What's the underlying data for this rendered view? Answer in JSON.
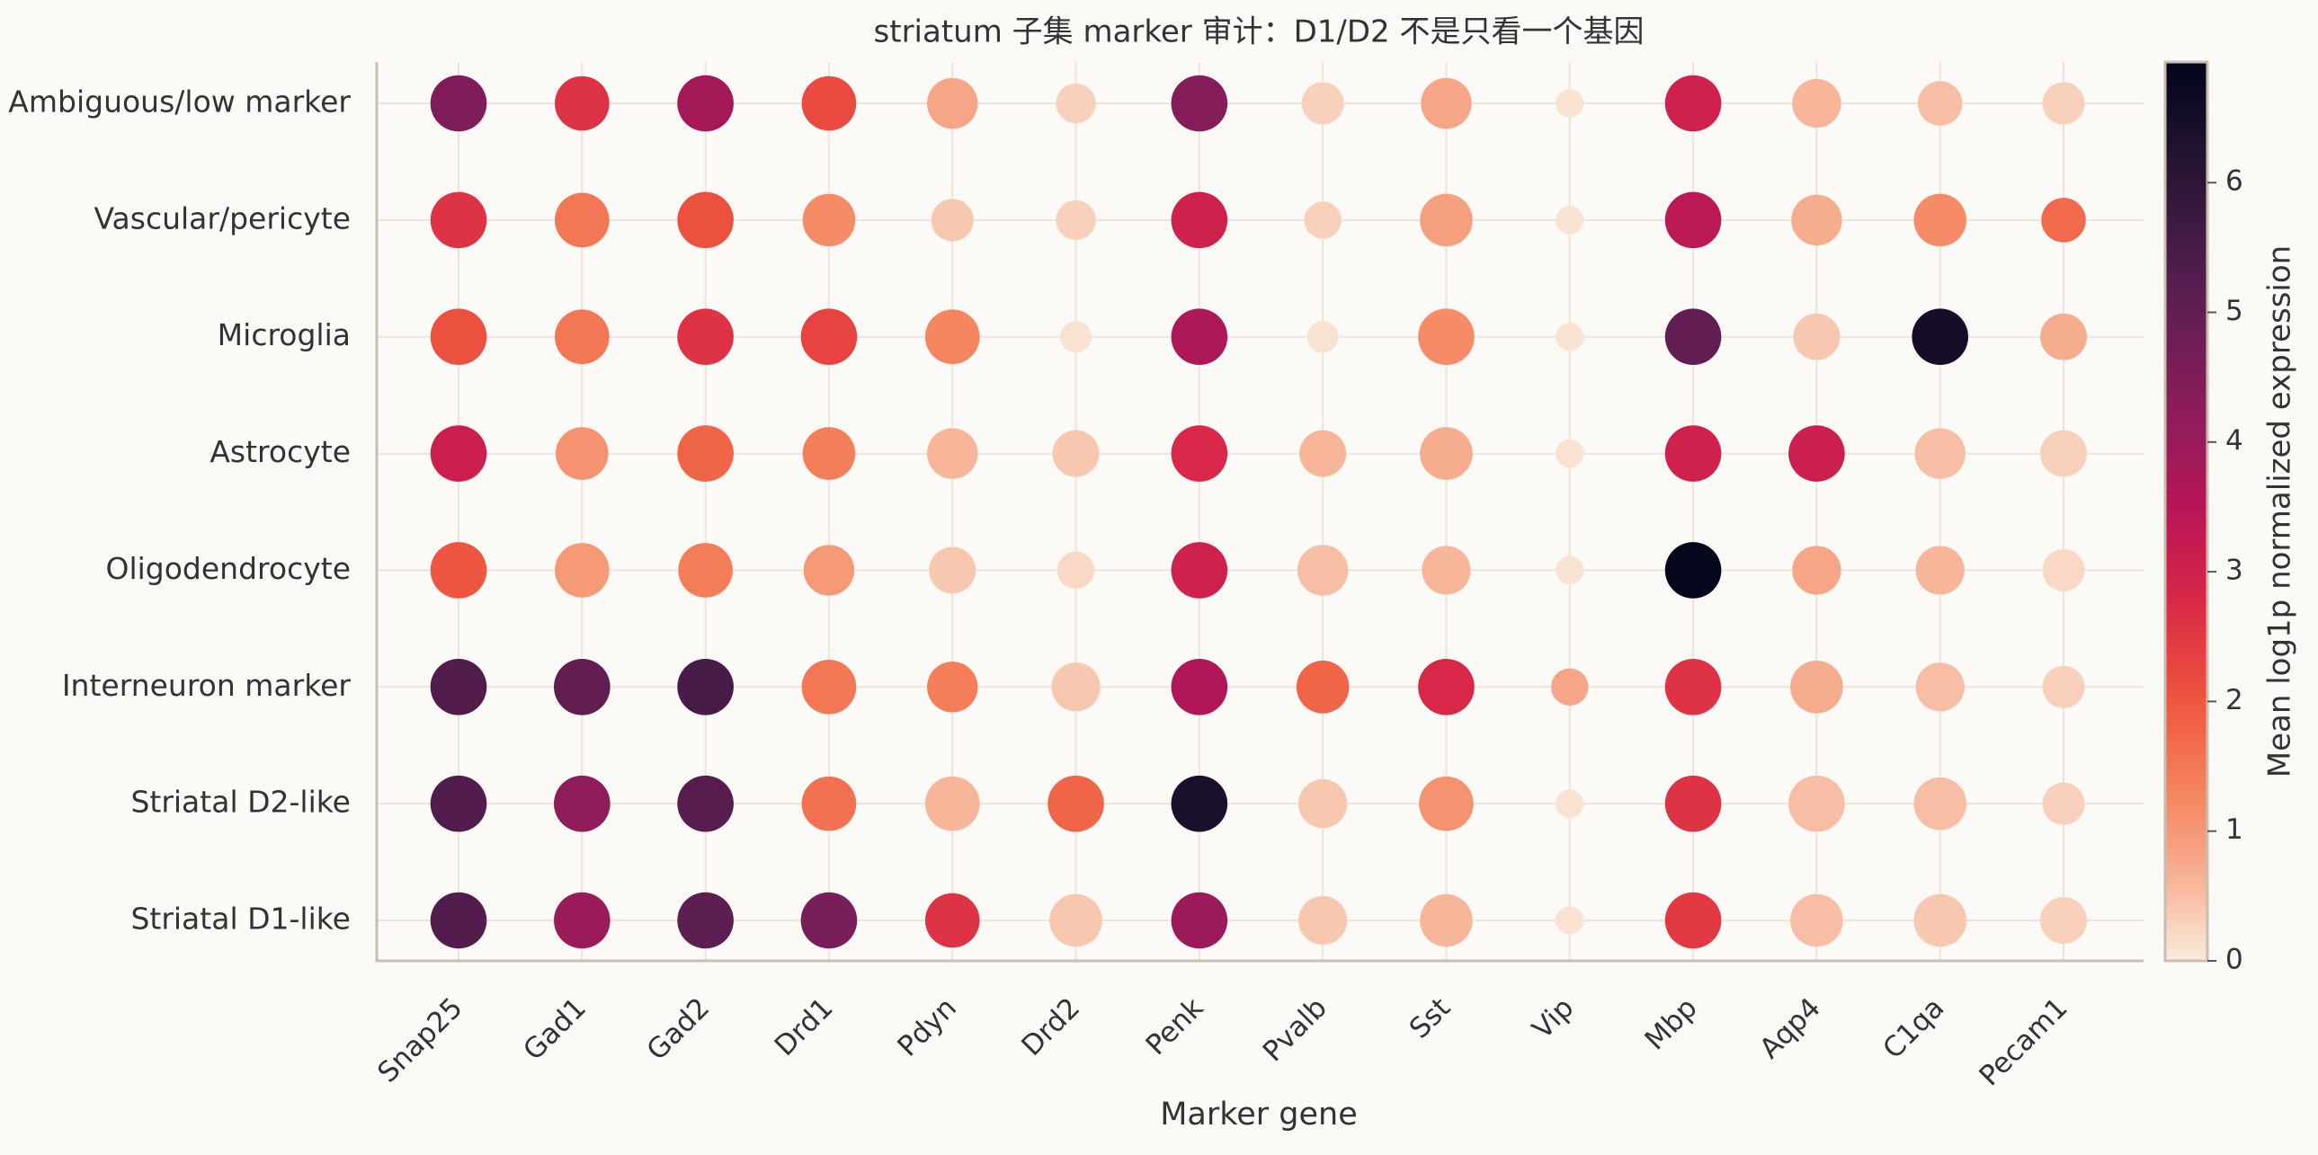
{
  "chart_data": {
    "type": "dotplot",
    "title": "striatum 子集 marker 审计：D1/D2 不是只看一个基因",
    "xlabel": "Marker gene",
    "colorbar_label": "Mean log1p normalized expression",
    "categories": [
      "Snap25",
      "Gad1",
      "Gad2",
      "Drd1",
      "Pdyn",
      "Drd2",
      "Penk",
      "Pvalb",
      "Sst",
      "Vip",
      "Mbp",
      "Aqp4",
      "C1qa",
      "Pecam1"
    ],
    "rows": [
      {
        "name": "Striatal D1-like",
        "values": [
          5.3,
          4.0,
          5.1,
          4.6,
          2.6,
          0.4,
          4.0,
          0.4,
          0.6,
          0.1,
          2.5,
          0.5,
          0.4,
          0.3
        ],
        "sizes": [
          0.8,
          0.8,
          0.8,
          0.8,
          0.75,
          0.7,
          0.8,
          0.6,
          0.7,
          0.2,
          0.8,
          0.7,
          0.7,
          0.55
        ]
      },
      {
        "name": "Striatal D2-like",
        "values": [
          5.3,
          4.2,
          5.2,
          1.6,
          0.6,
          1.8,
          6.4,
          0.4,
          1.1,
          0.1,
          2.6,
          0.5,
          0.5,
          0.3
        ],
        "sizes": [
          0.8,
          0.8,
          0.8,
          0.75,
          0.75,
          0.8,
          0.8,
          0.6,
          0.75,
          0.2,
          0.8,
          0.8,
          0.7,
          0.45
        ]
      },
      {
        "name": "Interneuron marker",
        "values": [
          5.3,
          5.0,
          5.5,
          1.5,
          1.4,
          0.4,
          3.6,
          1.8,
          2.8,
          0.8,
          2.6,
          0.7,
          0.5,
          0.3
        ],
        "sizes": [
          0.8,
          0.8,
          0.8,
          0.75,
          0.65,
          0.6,
          0.8,
          0.7,
          0.8,
          0.35,
          0.8,
          0.7,
          0.6,
          0.45
        ]
      },
      {
        "name": "Oligodendrocyte",
        "values": [
          2.0,
          1.0,
          1.4,
          1.0,
          0.4,
          0.2,
          3.0,
          0.5,
          0.6,
          0.1,
          6.9,
          0.8,
          0.6,
          0.2
        ],
        "sizes": [
          0.8,
          0.75,
          0.75,
          0.65,
          0.55,
          0.35,
          0.8,
          0.65,
          0.6,
          0.2,
          0.8,
          0.6,
          0.6,
          0.45
        ]
      },
      {
        "name": "Astrocyte",
        "values": [
          3.1,
          1.1,
          1.8,
          1.4,
          0.6,
          0.4,
          2.8,
          0.6,
          0.7,
          0.1,
          3.0,
          3.1,
          0.5,
          0.3
        ],
        "sizes": [
          0.8,
          0.7,
          0.8,
          0.7,
          0.65,
          0.55,
          0.8,
          0.55,
          0.7,
          0.2,
          0.8,
          0.8,
          0.65,
          0.55
        ]
      },
      {
        "name": "Microglia",
        "values": [
          2.1,
          1.5,
          2.6,
          2.3,
          1.3,
          0.1,
          3.7,
          0.1,
          1.2,
          0.1,
          5.0,
          0.4,
          6.5,
          0.7
        ],
        "sizes": [
          0.8,
          0.75,
          0.8,
          0.8,
          0.75,
          0.25,
          0.8,
          0.25,
          0.8,
          0.2,
          0.8,
          0.55,
          0.8,
          0.55
        ]
      },
      {
        "name": "Vascular/pericyte",
        "values": [
          2.6,
          1.5,
          2.1,
          1.2,
          0.4,
          0.3,
          3.0,
          0.3,
          0.9,
          0.1,
          3.4,
          0.7,
          1.2,
          1.7
        ],
        "sizes": [
          0.8,
          0.75,
          0.8,
          0.7,
          0.45,
          0.4,
          0.8,
          0.35,
          0.7,
          0.2,
          0.8,
          0.65,
          0.7,
          0.5
        ]
      },
      {
        "name": "Ambiguous/low marker",
        "values": [
          4.5,
          2.6,
          3.8,
          2.2,
          0.8,
          0.3,
          4.4,
          0.3,
          0.8,
          0.1,
          3.0,
          0.6,
          0.5,
          0.3
        ],
        "sizes": [
          0.8,
          0.75,
          0.8,
          0.75,
          0.65,
          0.4,
          0.8,
          0.45,
          0.65,
          0.2,
          0.8,
          0.6,
          0.5,
          0.45
        ]
      }
    ],
    "clim": [
      0,
      6.93
    ],
    "cticks": [
      0,
      1,
      2,
      3,
      4,
      5,
      6
    ],
    "colormap": [
      "#faebdd",
      "#f6ad8f",
      "#f47f58",
      "#ed513e",
      "#d92847",
      "#b91657",
      "#921c5b",
      "#6a1f56",
      "#451c47",
      "#221331",
      "#03051a"
    ],
    "grid": true
  }
}
